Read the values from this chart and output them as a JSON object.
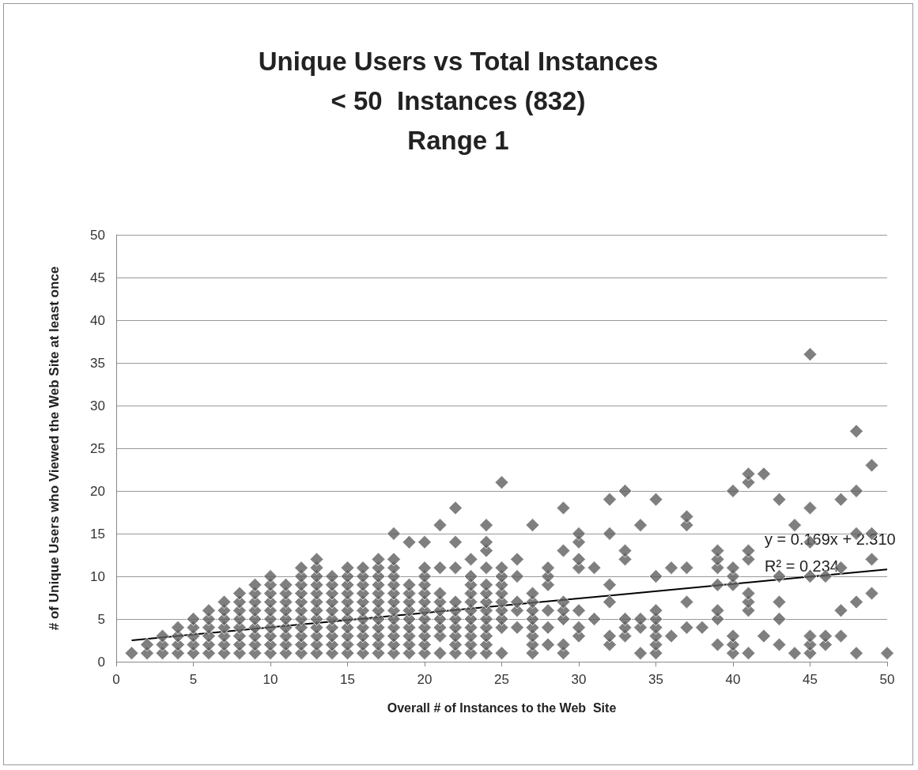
{
  "chart_data": {
    "type": "scatter",
    "title": "Unique Users vs Total Instances\n< 50  Instances (832)\nRange 1",
    "xlabel": "Overall # of Instances to the Web  Site",
    "ylabel": "# of Unique Users who Viewed the Web Site at least once",
    "xlim": [
      0,
      50
    ],
    "xticks": [
      0,
      5,
      10,
      15,
      20,
      25,
      30,
      35,
      40,
      45,
      50
    ],
    "ylim": [
      0,
      50
    ],
    "yticks": [
      0,
      5,
      10,
      15,
      20,
      25,
      30,
      35,
      40,
      45,
      50
    ],
    "grid": "y",
    "marker": "diamond",
    "annotations": [
      "y = 0.169x + 2.310",
      "R² = 0.234"
    ],
    "series": [
      {
        "color": "#5f5f5f",
        "x": [
          1,
          2,
          2,
          3,
          3,
          3,
          4,
          4,
          4,
          4,
          5,
          5,
          5,
          5,
          5,
          6,
          6,
          6,
          6,
          6,
          6,
          7,
          7,
          7,
          7,
          7,
          7,
          7,
          8,
          8,
          8,
          8,
          8,
          8,
          8,
          8,
          9,
          9,
          9,
          9,
          9,
          9,
          9,
          9,
          9,
          10,
          10,
          10,
          10,
          10,
          10,
          10,
          10,
          10,
          10,
          11,
          11,
          11,
          11,
          11,
          11,
          11,
          11,
          11,
          12,
          12,
          12,
          12,
          12,
          12,
          12,
          12,
          12,
          12,
          12,
          13,
          13,
          13,
          13,
          13,
          13,
          13,
          13,
          13,
          13,
          13,
          13,
          14,
          14,
          14,
          14,
          14,
          14,
          14,
          14,
          14,
          14,
          15,
          15,
          15,
          15,
          15,
          15,
          15,
          15,
          15,
          15,
          15,
          16,
          16,
          16,
          16,
          16,
          16,
          16,
          16,
          16,
          16,
          16,
          17,
          17,
          17,
          17,
          17,
          17,
          17,
          17,
          17,
          17,
          17,
          17,
          18,
          18,
          18,
          18,
          18,
          18,
          18,
          18,
          18,
          18,
          18,
          18,
          18,
          19,
          19,
          19,
          19,
          19,
          19,
          19,
          19,
          19,
          19,
          20,
          20,
          20,
          20,
          20,
          20,
          20,
          20,
          20,
          20,
          20,
          20,
          21,
          21,
          21,
          21,
          21,
          21,
          21,
          21,
          21,
          22,
          22,
          22,
          22,
          22,
          22,
          22,
          22,
          22,
          22,
          23,
          23,
          23,
          23,
          23,
          23,
          23,
          23,
          23,
          23,
          23,
          24,
          24,
          24,
          24,
          24,
          24,
          24,
          24,
          24,
          24,
          24,
          24,
          24,
          25,
          25,
          25,
          25,
          25,
          25,
          25,
          25,
          25,
          25,
          26,
          26,
          26,
          26,
          26,
          27,
          27,
          27,
          27,
          27,
          27,
          27,
          27,
          27,
          28,
          28,
          28,
          28,
          28,
          28,
          29,
          29,
          29,
          29,
          29,
          29,
          29,
          30,
          30,
          30,
          30,
          30,
          30,
          30,
          31,
          31,
          32,
          32,
          32,
          32,
          32,
          32,
          33,
          33,
          33,
          33,
          33,
          33,
          34,
          34,
          34,
          34,
          35,
          35,
          35,
          35,
          35,
          35,
          35,
          35,
          36,
          36,
          37,
          37,
          37,
          37,
          37,
          38,
          39,
          39,
          39,
          39,
          39,
          39,
          39,
          40,
          40,
          40,
          40,
          40,
          40,
          40,
          41,
          41,
          41,
          41,
          41,
          41,
          41,
          41,
          42,
          42,
          43,
          43,
          43,
          43,
          43,
          44,
          44,
          45,
          45,
          45,
          45,
          45,
          45,
          45,
          46,
          46,
          46,
          47,
          47,
          47,
          47,
          48,
          48,
          48,
          48,
          48,
          49,
          49,
          49,
          49,
          50
        ],
        "values": [
          1,
          1,
          2,
          1,
          2,
          3,
          1,
          2,
          3,
          4,
          1,
          2,
          3,
          4,
          5,
          1,
          2,
          3,
          4,
          5,
          6,
          1,
          2,
          3,
          4,
          5,
          6,
          7,
          1,
          2,
          3,
          4,
          5,
          6,
          7,
          8,
          1,
          2,
          3,
          4,
          5,
          6,
          7,
          8,
          9,
          1,
          2,
          3,
          4,
          5,
          6,
          7,
          8,
          9,
          10,
          1,
          2,
          3,
          4,
          5,
          6,
          7,
          8,
          9,
          1,
          2,
          3,
          4,
          5,
          6,
          7,
          8,
          9,
          10,
          11,
          1,
          2,
          3,
          4,
          5,
          6,
          7,
          8,
          9,
          10,
          11,
          12,
          1,
          2,
          3,
          4,
          5,
          6,
          7,
          8,
          9,
          10,
          1,
          2,
          3,
          4,
          5,
          6,
          7,
          8,
          9,
          10,
          11,
          1,
          2,
          3,
          4,
          5,
          6,
          7,
          8,
          9,
          10,
          11,
          1,
          2,
          3,
          4,
          5,
          6,
          7,
          8,
          9,
          10,
          11,
          12,
          1,
          2,
          3,
          4,
          5,
          6,
          7,
          8,
          9,
          10,
          11,
          12,
          15,
          1,
          2,
          3,
          4,
          5,
          6,
          7,
          8,
          9,
          14,
          1,
          2,
          3,
          4,
          5,
          6,
          7,
          8,
          9,
          10,
          11,
          14,
          1,
          3,
          4,
          5,
          6,
          7,
          8,
          11,
          16,
          1,
          2,
          3,
          4,
          5,
          6,
          7,
          11,
          14,
          18,
          1,
          2,
          3,
          4,
          5,
          6,
          7,
          8,
          9,
          10,
          12,
          1,
          2,
          3,
          4,
          5,
          6,
          7,
          8,
          9,
          11,
          13,
          14,
          16,
          1,
          4,
          5,
          6,
          7,
          8,
          9,
          10,
          11,
          21,
          4,
          6,
          7,
          10,
          12,
          1,
          2,
          3,
          4,
          5,
          6,
          7,
          8,
          16,
          2,
          4,
          6,
          9,
          10,
          11,
          1,
          2,
          5,
          6,
          7,
          13,
          18,
          3,
          4,
          6,
          11,
          12,
          14,
          15,
          5,
          11,
          2,
          3,
          7,
          9,
          15,
          19,
          3,
          4,
          5,
          12,
          13,
          20,
          1,
          4,
          5,
          16,
          1,
          2,
          3,
          4,
          5,
          6,
          10,
          19,
          3,
          11,
          4,
          7,
          11,
          16,
          17,
          4,
          2,
          5,
          6,
          9,
          11,
          12,
          13,
          1,
          2,
          3,
          9,
          10,
          11,
          20,
          1,
          6,
          7,
          8,
          12,
          13,
          21,
          22,
          3,
          22,
          2,
          5,
          7,
          10,
          19,
          1,
          16,
          1,
          2,
          3,
          10,
          14,
          18,
          36,
          2,
          3,
          10,
          3,
          6,
          11,
          19,
          1,
          7,
          15,
          20,
          27,
          8,
          12,
          15,
          23,
          1
        ]
      },
      {
        "type": "line",
        "color": "#000000",
        "marker": "none",
        "x": [
          1,
          50
        ],
        "values": [
          2.5,
          10.8
        ]
      }
    ]
  }
}
